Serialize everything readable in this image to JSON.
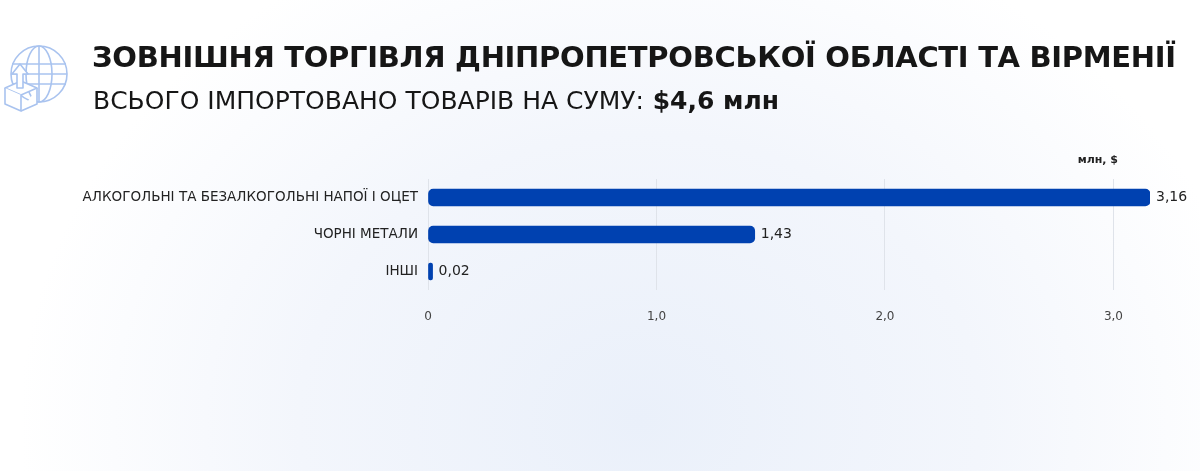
{
  "chart_data": {
    "type": "bar",
    "orientation": "horizontal",
    "title": "ЗОВНІШНЯ ТОРГІВЛЯ ДНІПРОПЕТРОВСЬКОЇ ОБЛАСТІ ТА ВІРМЕНІЇ",
    "subtitle": "ВСЬОГО ІМПОРТОВАНО ТОВАРІВ НА СУМУ: $4,6 млн",
    "xlabel": "млн, $",
    "categories": [
      "АЛКОГОЛЬНІ ТА БЕЗАЛКОГОЛЬНІ НАПОЇ І ОЦЕТ",
      "ЧОРНІ МЕТАЛИ",
      "ІНШІ"
    ],
    "values": [
      3.16,
      1.43,
      0.02
    ],
    "value_labels": [
      "3,16",
      "1,43",
      "0,02"
    ],
    "color": "#0041b0",
    "xlim": [
      0,
      3.16
    ],
    "xticks": [
      0,
      {
        "value": 1,
        "label": "1,0"
      },
      {
        "value": 2,
        "label": "2,0"
      },
      {
        "value": 3,
        "label": "3,0"
      }
    ],
    "grid": "x"
  }
}
